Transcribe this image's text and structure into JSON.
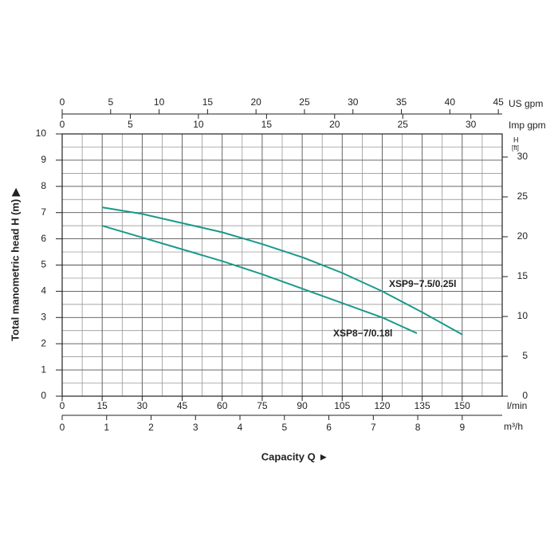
{
  "chart_data": {
    "type": "line",
    "y_label": "Total manometric head H (m) ▶",
    "x_title": "Capacity Q ►",
    "xlim": [
      0,
      165
    ],
    "xticks": [
      0,
      15,
      30,
      45,
      60,
      75,
      90,
      105,
      120,
      135,
      150
    ],
    "x_unit": "l/min",
    "x2lim": [
      0,
      9.9
    ],
    "x2ticks": [
      0,
      1,
      2,
      3,
      4,
      5,
      6,
      7,
      8,
      9
    ],
    "x2_unit": "m³/h",
    "x3lim": [
      0,
      45.4
    ],
    "x3ticks": [
      0,
      5,
      10,
      15,
      20,
      25,
      30,
      35,
      40,
      45
    ],
    "x3_unit": "US gpm",
    "x4lim": [
      0,
      32.3
    ],
    "x4ticks": [
      0,
      5,
      10,
      15,
      20,
      25,
      30
    ],
    "x4_unit": "Imp gpm",
    "ylim": [
      0,
      10
    ],
    "yticks": [
      0,
      1,
      2,
      3,
      4,
      5,
      6,
      7,
      8,
      9,
      10
    ],
    "y2lim": [
      0,
      32.9
    ],
    "y2ticks": [
      0,
      5,
      10,
      15,
      20,
      25,
      30
    ],
    "y2_label": "H",
    "y2_unit": "[ft]",
    "grid": true,
    "series": [
      {
        "name": "XSP9−7.5/0.25l",
        "color": "#1a9a8a",
        "x": [
          15,
          30,
          45,
          60,
          75,
          90,
          105,
          120,
          135,
          150
        ],
        "values": [
          7.2,
          6.95,
          6.6,
          6.25,
          5.8,
          5.3,
          4.7,
          4.0,
          3.2,
          2.35
        ]
      },
      {
        "name": "XSP8−7/0.18l",
        "color": "#1a9a8a",
        "x": [
          15,
          30,
          45,
          60,
          75,
          90,
          105,
          120,
          133
        ],
        "values": [
          6.5,
          6.05,
          5.6,
          5.15,
          4.65,
          4.1,
          3.55,
          3.0,
          2.4
        ]
      }
    ]
  }
}
